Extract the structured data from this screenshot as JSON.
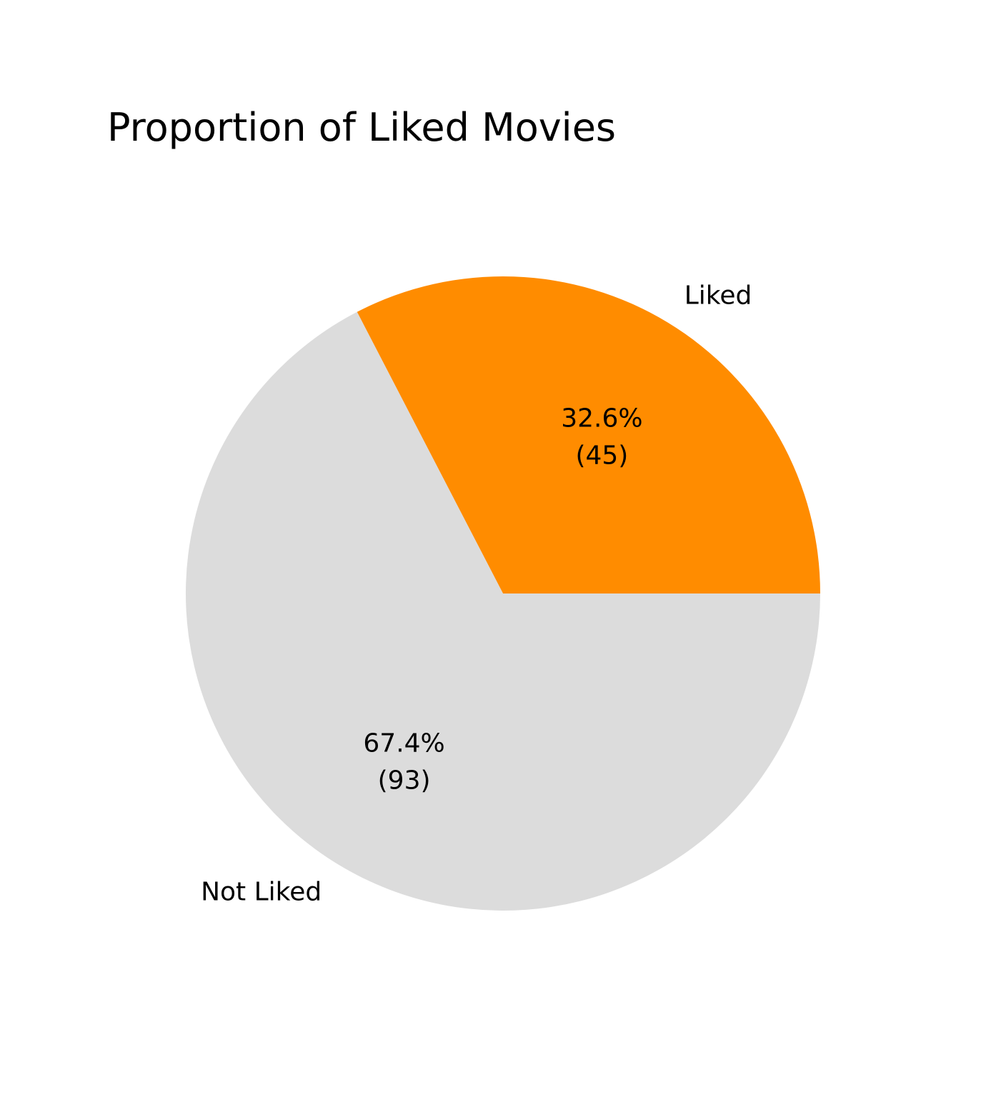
{
  "chart_data": {
    "type": "pie",
    "title": "Proportion of Liked Movies",
    "categories": [
      "Not Liked",
      "Liked"
    ],
    "values": [
      93,
      45
    ],
    "percent_labels": [
      "67.4%",
      "32.6%"
    ],
    "count_labels": [
      "(93)",
      "(45)"
    ],
    "colors": [
      "#dcdcdc",
      "#ff8c00"
    ],
    "start_angle_deg": 0,
    "direction": "counterclockwise"
  }
}
